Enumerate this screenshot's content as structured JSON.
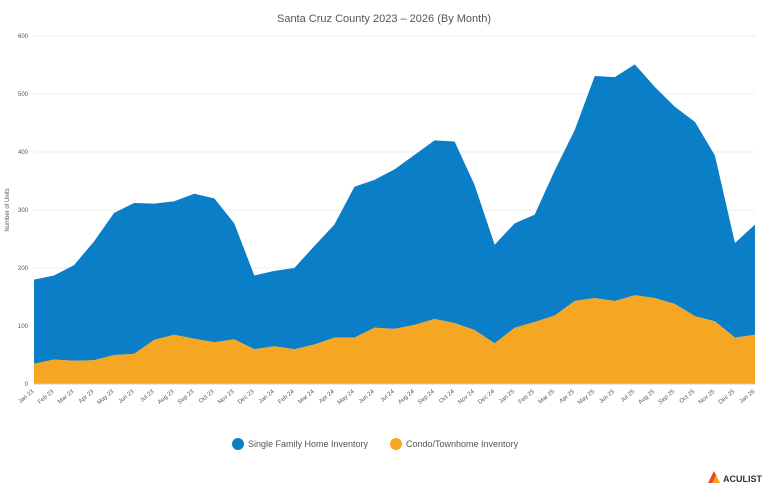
{
  "colors": {
    "single_family": "#0a7fc8",
    "condo": "#f5a623",
    "grid": "#e6e6e6",
    "axis": "#cccccc",
    "brand_mark": "#e8442e",
    "brand_mark_2": "#f5a623"
  },
  "brand": {
    "name": "ACULIST",
    "icon": "aculist-logo-icon"
  },
  "chart_data": {
    "type": "area",
    "stacked": true,
    "title": "Santa Cruz County 2023 – 2026 (By Month)",
    "ylabel": "Number of Units",
    "xlabel": "",
    "ylim": [
      0,
      600
    ],
    "yticks": [
      "0",
      "100",
      "200",
      "300",
      "400",
      "500",
      "600"
    ],
    "ytick_values": [
      0,
      100,
      200,
      300,
      400,
      500,
      600
    ],
    "grid": true,
    "legend_position": "bottom-center",
    "categories": [
      "Jan 23",
      "Feb 23",
      "Mar 23",
      "Apr 23",
      "May 23",
      "Jun 23",
      "Jul 23",
      "Aug 23",
      "Sep 23",
      "Oct 23",
      "Nov 23",
      "Dec 23",
      "Jan 24",
      "Feb 24",
      "Mar 24",
      "Apr 24",
      "May 24",
      "Jun 24",
      "Jul 24",
      "Aug 24",
      "Sep 24",
      "Oct 24",
      "Nov 24",
      "Dec 24",
      "Jan 25",
      "Feb 25",
      "Mar 25",
      "Apr 25",
      "May 25",
      "Jun 25",
      "Jul 25",
      "Aug 25",
      "Sep 25",
      "Oct 25",
      "Nov 25",
      "Dec 25",
      "Jan 26"
    ],
    "series": [
      {
        "name": "Single Family Home Inventory",
        "color_key": "single_family",
        "values": [
          145,
          145,
          165,
          205,
          245,
          260,
          235,
          230,
          250,
          248,
          200,
          127,
          130,
          140,
          170,
          195,
          260,
          255,
          275,
          293,
          308,
          313,
          250,
          170,
          180,
          185,
          250,
          295,
          383,
          386,
          398,
          364,
          340,
          335,
          286,
          163,
          190
        ]
      },
      {
        "name": "Condo/Townhome Inventory",
        "color_key": "condo",
        "values": [
          35,
          42,
          40,
          41,
          50,
          52,
          76,
          85,
          78,
          72,
          77,
          60,
          65,
          60,
          68,
          80,
          80,
          97,
          95,
          102,
          112,
          105,
          93,
          70,
          97,
          107,
          118,
          143,
          148,
          143,
          153,
          148,
          138,
          117,
          108,
          80,
          85
        ]
      }
    ]
  }
}
